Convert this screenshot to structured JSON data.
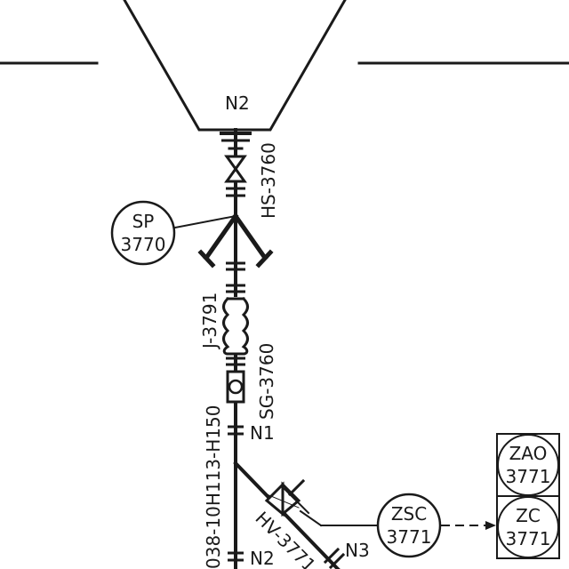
{
  "nozzles": {
    "top": "N2",
    "pipe_n1": "N1",
    "pipe_n2": "N2",
    "branch_n3": "N3"
  },
  "tags": {
    "hand_switch": "HS-3760",
    "expansion_joint": "J-3791",
    "sight_glass": "SG-3760",
    "line_number": "038-10H113-H150",
    "hand_valve": "HV-3771"
  },
  "instruments": {
    "sp": {
      "letters": "SP",
      "number": "3770"
    },
    "zsc": {
      "letters": "ZSC",
      "number": "3771"
    },
    "zao": {
      "letters": "ZAO",
      "number": "3771"
    },
    "zc": {
      "letters": "ZC",
      "number": "3771"
    }
  }
}
